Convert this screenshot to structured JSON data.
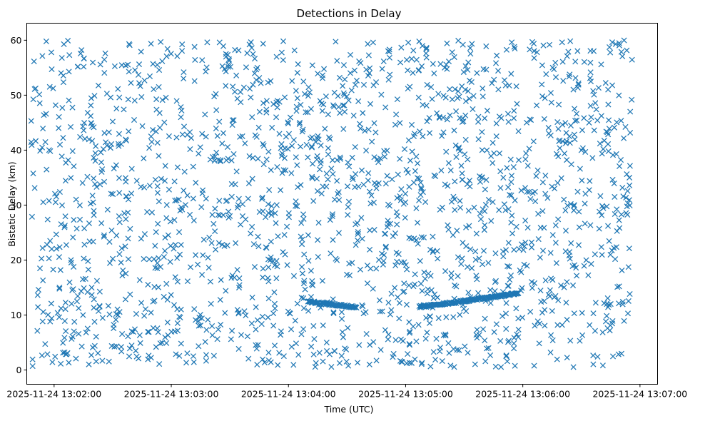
{
  "chart_data": {
    "type": "scatter",
    "title": "Detections in Delay",
    "xlabel": "Time (UTC)",
    "ylabel": "Bistatic Delay (km)",
    "marker": "x",
    "color": "#1f77b4",
    "grid": false,
    "legend": "none",
    "x_is_datetime": true,
    "xlim": [
      "2025-11-24 13:01:46",
      "2025-11-24 13:07:09"
    ],
    "ylim": [
      -2.6,
      63.1
    ],
    "x_ticks": [
      "2025-11-24 13:02:00",
      "2025-11-24 13:03:00",
      "2025-11-24 13:04:00",
      "2025-11-24 13:05:00",
      "2025-11-24 13:06:00",
      "2025-11-24 13:07:00"
    ],
    "y_ticks": [
      "0",
      "10",
      "20",
      "30",
      "40",
      "50",
      "60"
    ],
    "x_range_data": [
      "2025-11-24 13:01:48",
      "2025-11-24 13:06:56"
    ],
    "approx_points_per_second": 6,
    "series": [
      {
        "kind": "tracks",
        "tracks": [
          {
            "start": "2025-11-24 13:04:10",
            "end": "2025-11-24 13:04:35",
            "x": [
              "2025-11-24 13:04:10",
              "2025-11-24 13:04:15",
              "2025-11-24 13:04:20",
              "2025-11-24 13:04:25",
              "2025-11-24 13:04:30",
              "2025-11-24 13:04:35"
            ],
            "y": [
              12.5,
              12.2,
              12.0,
              11.8,
              11.6,
              11.5
            ]
          },
          {
            "start": "2025-11-24 13:05:07",
            "end": "2025-11-24 13:05:58",
            "x": [
              "2025-11-24 13:05:07",
              "2025-11-24 13:05:17",
              "2025-11-24 13:05:27",
              "2025-11-24 13:05:37",
              "2025-11-24 13:05:47",
              "2025-11-24 13:05:58"
            ],
            "y": [
              11.5,
              11.9,
              12.4,
              12.9,
              13.4,
              14.0
            ]
          }
        ]
      },
      {
        "kind": "clutter",
        "y_range": [
          0.5,
          60
        ],
        "sample_x": [
          "2025-11-24 13:01:49",
          "2025-11-24 13:01:52",
          "2025-11-24 13:01:56",
          "2025-11-24 13:02:03",
          "2025-11-24 13:02:20",
          "2025-11-24 13:02:41",
          "2025-11-24 13:03:05",
          "2025-11-24 13:03:30",
          "2025-11-24 13:03:51",
          "2025-11-24 13:04:12",
          "2025-11-24 13:04:44",
          "2025-11-24 13:05:02",
          "2025-11-24 13:05:20",
          "2025-11-24 13:05:50",
          "2025-11-24 13:06:10",
          "2025-11-24 13:06:30",
          "2025-11-24 13:06:45",
          "2025-11-24 13:06:55"
        ],
        "sample_y": [
          0.7,
          14.6,
          59.8,
          41.0,
          30.5,
          45.5,
          11.0,
          28.0,
          20.5,
          40.5,
          25.5,
          1.3,
          55.0,
          35.0,
          49.8,
          40.0,
          12.0,
          47.0
        ]
      }
    ]
  }
}
